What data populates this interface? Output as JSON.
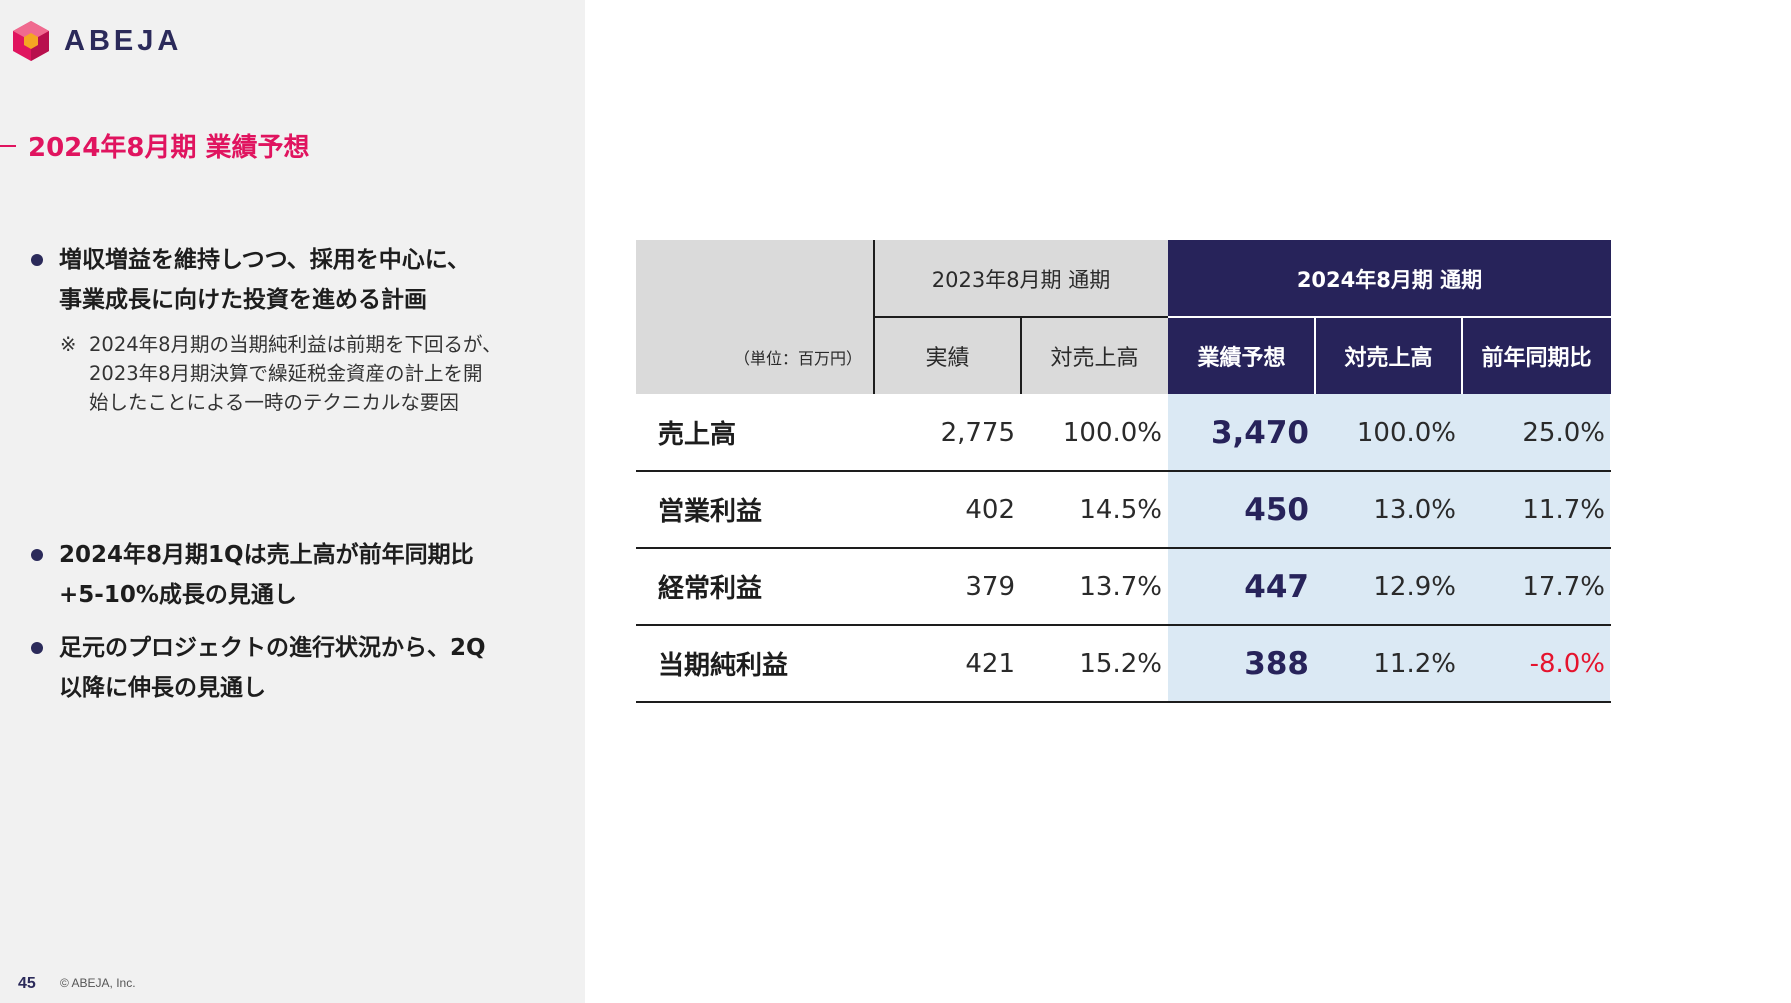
{
  "logo": {
    "name": "ABEJA",
    "icon": "abeja-logo-icon"
  },
  "section_title": "2024年8月期 業績予想",
  "bullets": [
    {
      "text": "増収増益を維持しつつ、採用を中心に、\n事業成長に向けた投資を進める計画"
    },
    {
      "text": "2024年8月期1Qは売上高が前年同期比\n+5-10%成長の見通し"
    },
    {
      "text": "足元のプロジェクトの進行状況から、2Q\n以降に伸長の見通し"
    }
  ],
  "note": {
    "mark": "※",
    "text": "2024年8月期の当期純利益は前期を下回るが、\n2023年8月期決算で繰延税金資産の計上を開\n始したことによる一時のテクニカルな要因"
  },
  "table": {
    "unit": "（単位：百万円）",
    "group_2023": "2023年8月期 通期",
    "group_2024": "2024年8月期 通期",
    "columns": [
      "実績",
      "対売上高",
      "業績予想",
      "対売上高",
      "前年同期比"
    ],
    "rows": [
      {
        "label": "売上高",
        "actual": "2,775",
        "ratio_2023": "100.0%",
        "forecast": "3,470",
        "ratio_2024": "100.0%",
        "yoy": "25.0%"
      },
      {
        "label": "営業利益",
        "actual": "402",
        "ratio_2023": "14.5%",
        "forecast": "450",
        "ratio_2024": "13.0%",
        "yoy": "11.7%"
      },
      {
        "label": "経常利益",
        "actual": "379",
        "ratio_2023": "13.7%",
        "forecast": "447",
        "ratio_2024": "12.9%",
        "yoy": "17.7%"
      },
      {
        "label": "当期純利益",
        "actual": "421",
        "ratio_2023": "15.2%",
        "forecast": "388",
        "ratio_2024": "11.2%",
        "yoy": "-8.0%"
      }
    ]
  },
  "footer": {
    "page_number": "45",
    "copyright": "© ABEJA, Inc."
  },
  "colors": {
    "accent": "#e0145f",
    "navy": "#27235a",
    "forecast_bg": "#dbe9f4",
    "negative": "#e5142e"
  }
}
